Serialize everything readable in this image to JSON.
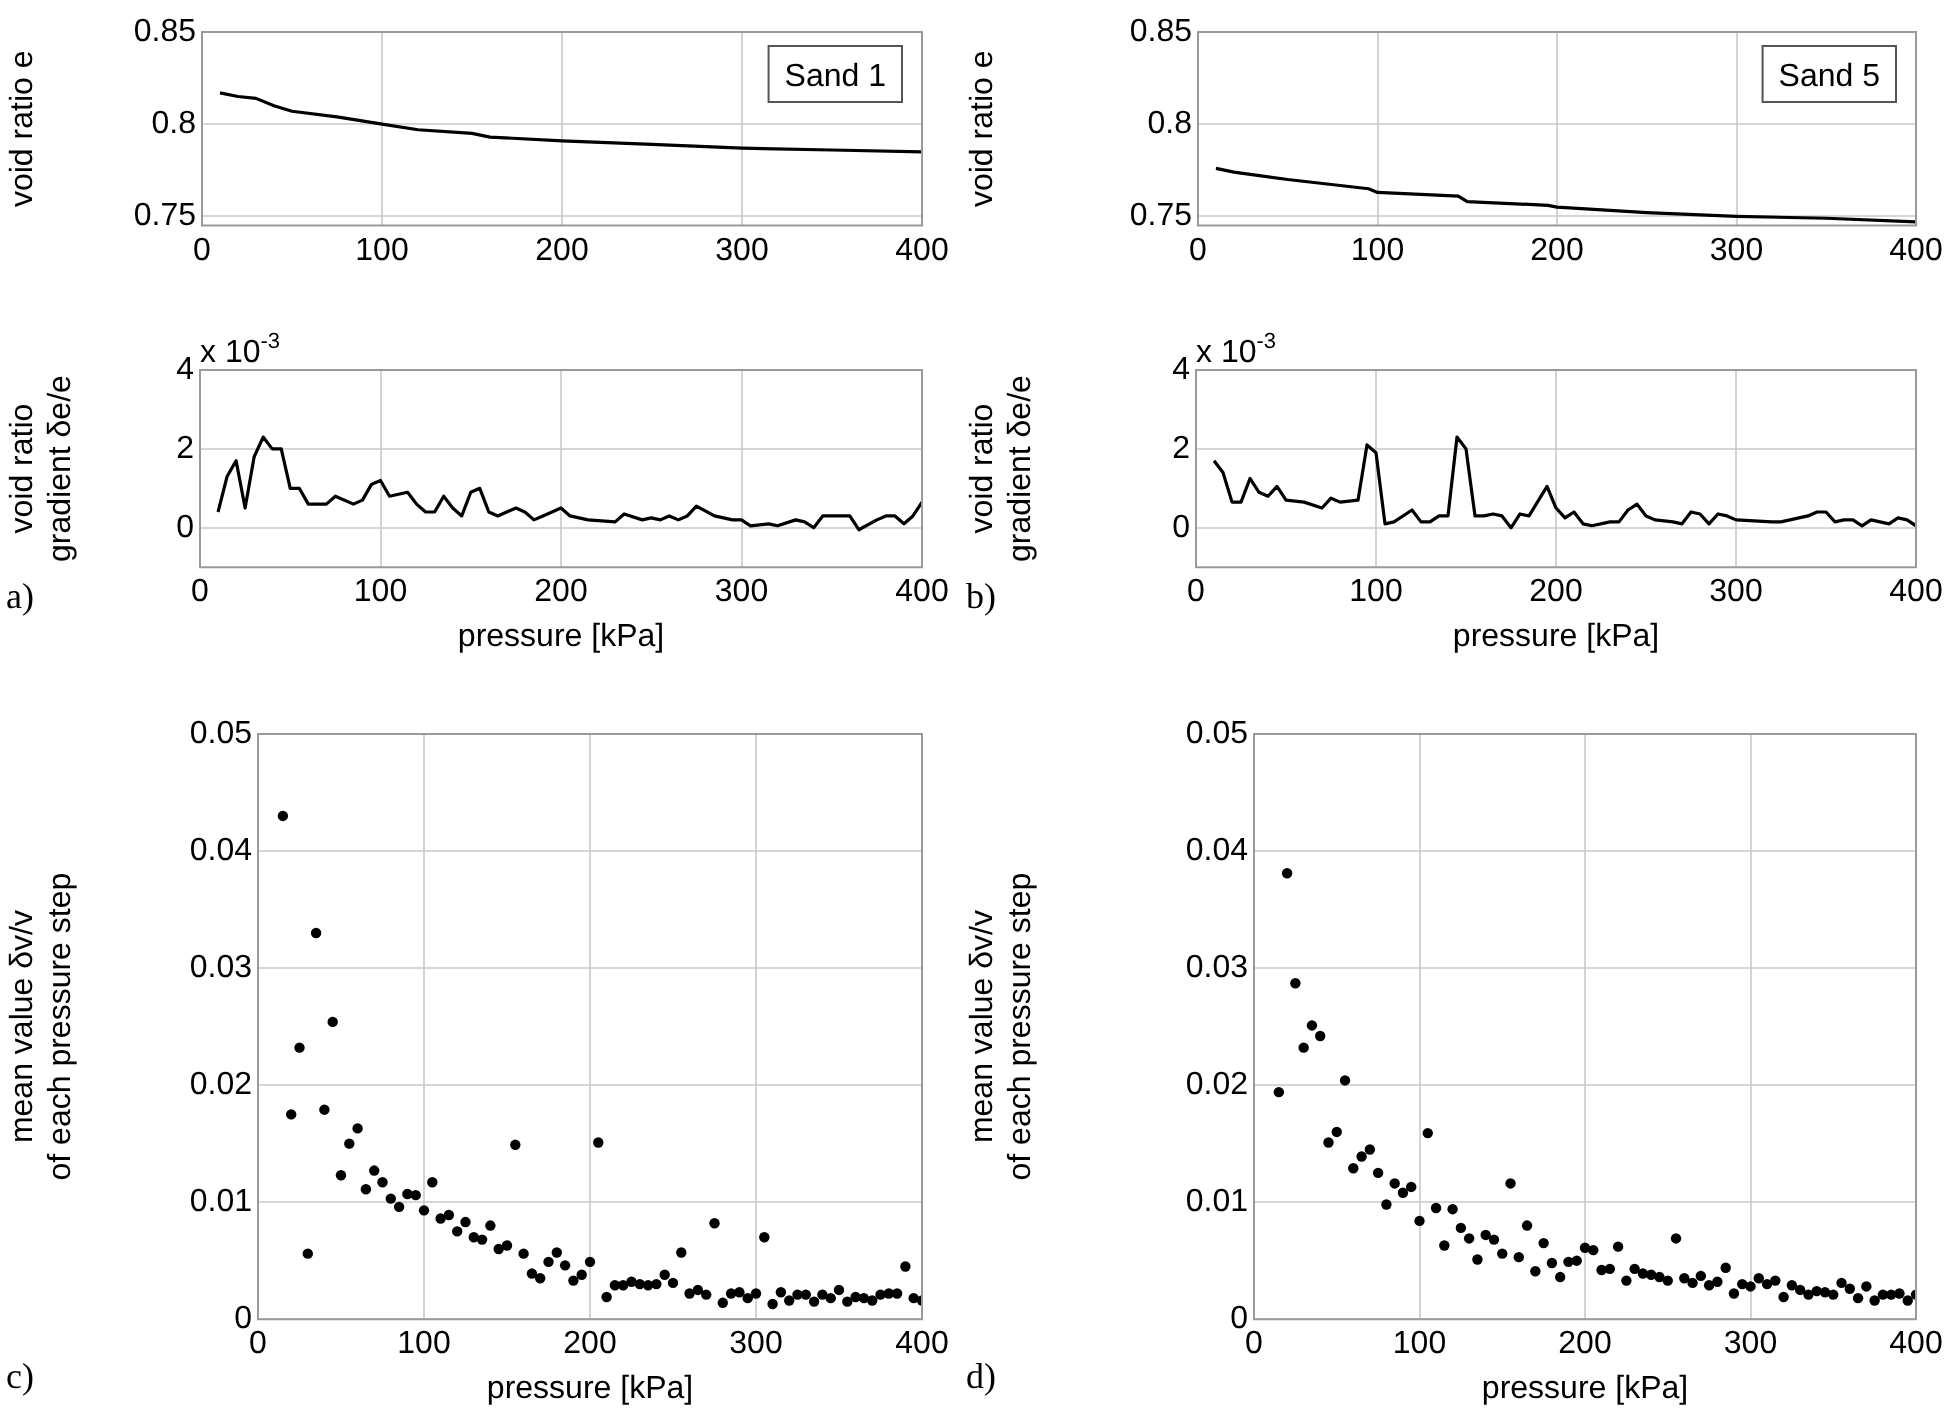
{
  "chart_data": [
    {
      "type": "line",
      "ylabel": "void ratio e",
      "annotations": [
        "Sand 1"
      ],
      "color": "#000000",
      "marker": "none",
      "line_style": "solid",
      "grid": true,
      "legend": false,
      "xlim": [
        0,
        400
      ],
      "xticks": [
        0,
        100,
        200,
        300,
        400
      ],
      "ylim": [
        0.745,
        0.85
      ],
      "yticks": [
        0.75,
        0.8,
        0.85
      ],
      "x": [
        10,
        20,
        30,
        40,
        50,
        75,
        100,
        120,
        150,
        160,
        200,
        250,
        300,
        350,
        400
      ],
      "values": [
        0.817,
        0.815,
        0.814,
        0.81,
        0.807,
        0.804,
        0.8,
        0.797,
        0.795,
        0.793,
        0.791,
        0.789,
        0.787,
        0.786,
        0.785
      ]
    },
    {
      "type": "line",
      "ylabel": "void ratio e",
      "annotations": [
        "Sand 5"
      ],
      "color": "#000000",
      "marker": "none",
      "line_style": "solid",
      "grid": true,
      "legend": false,
      "xlim": [
        0,
        400
      ],
      "xticks": [
        0,
        100,
        200,
        300,
        400
      ],
      "ylim": [
        0.745,
        0.85
      ],
      "yticks": [
        0.75,
        0.8,
        0.85
      ],
      "x": [
        10,
        20,
        50,
        95,
        100,
        145,
        150,
        195,
        200,
        250,
        300,
        350,
        400
      ],
      "values": [
        0.776,
        0.774,
        0.77,
        0.765,
        0.763,
        0.761,
        0.758,
        0.756,
        0.755,
        0.752,
        0.75,
        0.749,
        0.747
      ]
    },
    {
      "type": "line",
      "xlabel": "pressure [kPa]",
      "ylabel": "void ratio\ngradient δe/e",
      "annotations": [
        "x 10$^{-3}$",
        "a)"
      ],
      "color": "#000000",
      "marker": "none",
      "line_style": "solid",
      "grid": true,
      "legend": false,
      "xlim": [
        0,
        400
      ],
      "xticks": [
        0,
        100,
        200,
        300,
        400
      ],
      "ylim": [
        -1,
        4
      ],
      "yticks": [
        0,
        2,
        4
      ],
      "x": [
        10,
        15,
        20,
        25,
        30,
        35,
        40,
        45,
        50,
        55,
        60,
        70,
        75,
        85,
        90,
        95,
        100,
        105,
        115,
        120,
        125,
        130,
        135,
        140,
        145,
        150,
        155,
        160,
        165,
        175,
        180,
        185,
        190,
        200,
        205,
        215,
        230,
        235,
        245,
        250,
        255,
        260,
        265,
        270,
        275,
        285,
        295,
        300,
        305,
        315,
        320,
        330,
        335,
        340,
        345,
        355,
        360,
        365,
        375,
        380,
        385,
        390,
        395,
        400
      ],
      "values": [
        0.4,
        1.3,
        1.7,
        0.5,
        1.8,
        2.3,
        2.0,
        2.0,
        1.0,
        1.0,
        0.6,
        0.6,
        0.8,
        0.6,
        0.7,
        1.1,
        1.2,
        0.8,
        0.9,
        0.6,
        0.4,
        0.4,
        0.8,
        0.5,
        0.3,
        0.9,
        1.0,
        0.4,
        0.3,
        0.5,
        0.4,
        0.2,
        0.3,
        0.5,
        0.3,
        0.2,
        0.15,
        0.35,
        0.2,
        0.25,
        0.2,
        0.3,
        0.2,
        0.3,
        0.55,
        0.3,
        0.2,
        0.2,
        0.05,
        0.1,
        0.05,
        0.2,
        0.15,
        0.0,
        0.3,
        0.3,
        0.3,
        -0.05,
        0.2,
        0.3,
        0.3,
        0.1,
        0.3,
        0.65
      ]
    },
    {
      "type": "line",
      "xlabel": "pressure [kPa]",
      "ylabel": "void ratio\ngradient δe/e",
      "annotations": [
        "x 10$^{-3}$",
        "b)"
      ],
      "color": "#000000",
      "marker": "none",
      "line_style": "solid",
      "grid": true,
      "legend": false,
      "xlim": [
        0,
        400
      ],
      "xticks": [
        0,
        100,
        200,
        300,
        400
      ],
      "ylim": [
        -1,
        4
      ],
      "yticks": [
        0,
        2,
        4
      ],
      "x": [
        10,
        15,
        20,
        25,
        30,
        35,
        40,
        45,
        50,
        60,
        70,
        75,
        80,
        90,
        95,
        100,
        105,
        110,
        120,
        125,
        130,
        135,
        140,
        145,
        150,
        155,
        160,
        165,
        170,
        175,
        180,
        185,
        195,
        200,
        205,
        210,
        215,
        220,
        230,
        235,
        240,
        245,
        250,
        255,
        265,
        270,
        275,
        280,
        285,
        290,
        295,
        300,
        320,
        325,
        330,
        340,
        345,
        350,
        355,
        360,
        365,
        370,
        375,
        385,
        390,
        395,
        400
      ],
      "values": [
        1.7,
        1.4,
        0.65,
        0.65,
        1.25,
        0.9,
        0.8,
        1.05,
        0.7,
        0.65,
        0.5,
        0.75,
        0.65,
        0.7,
        2.1,
        1.9,
        0.1,
        0.15,
        0.45,
        0.15,
        0.15,
        0.3,
        0.3,
        2.3,
        2.0,
        0.3,
        0.3,
        0.35,
        0.3,
        0.0,
        0.35,
        0.3,
        1.05,
        0.5,
        0.25,
        0.4,
        0.1,
        0.05,
        0.15,
        0.15,
        0.45,
        0.6,
        0.3,
        0.2,
        0.15,
        0.1,
        0.4,
        0.35,
        0.1,
        0.35,
        0.3,
        0.2,
        0.15,
        0.15,
        0.2,
        0.3,
        0.4,
        0.4,
        0.15,
        0.2,
        0.2,
        0.05,
        0.2,
        0.1,
        0.25,
        0.2,
        0.05
      ]
    },
    {
      "type": "scatter",
      "xlabel": "pressure [kPa]",
      "ylabel": "mean value δv/v\nof each pressure step",
      "annotations": [
        "c)"
      ],
      "color": "#000000",
      "marker": "circle",
      "grid": true,
      "legend": false,
      "xlim": [
        0,
        400
      ],
      "xticks": [
        0,
        100,
        200,
        300,
        400
      ],
      "ylim": [
        0,
        0.05
      ],
      "yticks": [
        0,
        0.01,
        0.02,
        0.03,
        0.04,
        0.05
      ],
      "x": [
        15,
        20,
        25,
        30,
        35,
        40,
        45,
        50,
        55,
        60,
        65,
        70,
        75,
        80,
        85,
        90,
        95,
        100,
        105,
        110,
        115,
        120,
        125,
        130,
        135,
        140,
        145,
        150,
        155,
        160,
        165,
        170,
        175,
        180,
        185,
        190,
        195,
        200,
        205,
        210,
        215,
        220,
        225,
        230,
        235,
        240,
        245,
        250,
        255,
        260,
        265,
        270,
        275,
        280,
        285,
        290,
        295,
        300,
        305,
        310,
        315,
        320,
        325,
        330,
        335,
        340,
        345,
        350,
        355,
        360,
        365,
        370,
        375,
        380,
        385,
        390,
        395,
        400
      ],
      "values": [
        0.043,
        0.0175,
        0.0232,
        0.0056,
        0.033,
        0.0179,
        0.0254,
        0.0123,
        0.015,
        0.0163,
        0.0111,
        0.0127,
        0.0117,
        0.0103,
        0.0096,
        0.0107,
        0.0106,
        0.0093,
        0.0117,
        0.0086,
        0.0089,
        0.0075,
        0.0083,
        0.007,
        0.0068,
        0.008,
        0.006,
        0.0063,
        0.0149,
        0.0056,
        0.0039,
        0.0035,
        0.0049,
        0.0057,
        0.0046,
        0.0033,
        0.0038,
        0.0049,
        0.0151,
        0.0019,
        0.0029,
        0.0029,
        0.0032,
        0.003,
        0.0029,
        0.003,
        0.0038,
        0.0031,
        0.0057,
        0.0022,
        0.0025,
        0.0021,
        0.0082,
        0.0014,
        0.0022,
        0.0023,
        0.0018,
        0.0022,
        0.007,
        0.0013,
        0.0023,
        0.0016,
        0.0021,
        0.0021,
        0.0015,
        0.0021,
        0.0018,
        0.0025,
        0.0015,
        0.0019,
        0.0018,
        0.0016,
        0.0021,
        0.0022,
        0.0022,
        0.0045,
        0.0018,
        0.0016
      ]
    },
    {
      "type": "scatter",
      "xlabel": "pressure [kPa]",
      "ylabel": "mean value δv/v\nof each pressure step",
      "annotations": [
        "d)"
      ],
      "color": "#000000",
      "marker": "circle",
      "grid": true,
      "legend": false,
      "xlim": [
        0,
        400
      ],
      "xticks": [
        0,
        100,
        200,
        300,
        400
      ],
      "ylim": [
        0,
        0.05
      ],
      "yticks": [
        0,
        0.01,
        0.02,
        0.03,
        0.04,
        0.05
      ],
      "x": [
        15,
        20,
        25,
        30,
        35,
        40,
        45,
        50,
        55,
        60,
        65,
        70,
        75,
        80,
        85,
        90,
        95,
        100,
        105,
        110,
        115,
        120,
        125,
        130,
        135,
        140,
        145,
        150,
        155,
        160,
        165,
        170,
        175,
        180,
        185,
        190,
        195,
        200,
        205,
        210,
        215,
        220,
        225,
        230,
        235,
        240,
        245,
        250,
        255,
        260,
        265,
        270,
        275,
        280,
        285,
        290,
        295,
        300,
        305,
        310,
        315,
        320,
        325,
        330,
        335,
        340,
        345,
        350,
        355,
        360,
        365,
        370,
        375,
        380,
        385,
        390,
        395,
        400
      ],
      "values": [
        0.0194,
        0.0381,
        0.0287,
        0.0232,
        0.0251,
        0.0242,
        0.0151,
        0.016,
        0.0204,
        0.0129,
        0.0139,
        0.0145,
        0.0125,
        0.0098,
        0.0116,
        0.0108,
        0.0113,
        0.0084,
        0.0159,
        0.0095,
        0.0063,
        0.0094,
        0.0078,
        0.0069,
        0.0051,
        0.0072,
        0.0068,
        0.0056,
        0.0116,
        0.0053,
        0.008,
        0.0041,
        0.0065,
        0.0048,
        0.0036,
        0.0049,
        0.005,
        0.0061,
        0.0059,
        0.0042,
        0.0043,
        0.0062,
        0.0033,
        0.0043,
        0.0039,
        0.0038,
        0.0036,
        0.0033,
        0.0069,
        0.0035,
        0.0031,
        0.0037,
        0.0029,
        0.0032,
        0.0044,
        0.0022,
        0.003,
        0.0028,
        0.0035,
        0.003,
        0.0033,
        0.0019,
        0.0029,
        0.0025,
        0.0021,
        0.0024,
        0.0023,
        0.0021,
        0.0031,
        0.0026,
        0.0018,
        0.0028,
        0.0016,
        0.0021,
        0.0021,
        0.0022,
        0.0016,
        0.0021
      ]
    }
  ]
}
